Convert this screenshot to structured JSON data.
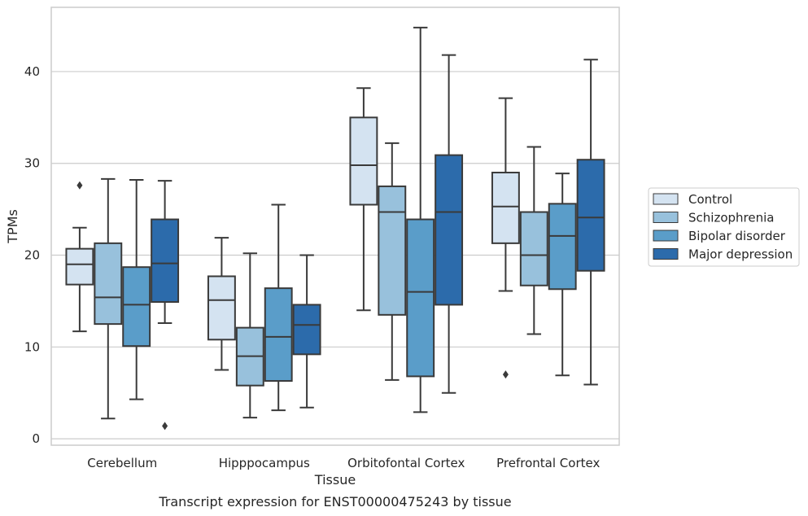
{
  "chart_data": {
    "type": "box",
    "xlabel": "Tissue",
    "ylabel": "TPMs",
    "caption": "Transcript expression for ENST00000475243 by tissue",
    "ylim": [
      -0.7,
      47
    ],
    "yticks": [
      0,
      10,
      20,
      30,
      40
    ],
    "grid": "horizontal",
    "legend_position": "right",
    "categories": [
      "Cerebellum",
      "Hipppocampus",
      "Orbitofontal Cortex",
      "Prefrontal Cortex"
    ],
    "series": [
      {
        "name": "Control",
        "color": "#d4e3f1",
        "boxes": [
          {
            "whisker_low": 11.7,
            "q1": 16.8,
            "median": 19.0,
            "q3": 20.7,
            "whisker_high": 23.0,
            "outliers": [
              27.6
            ]
          },
          {
            "whisker_low": 7.5,
            "q1": 10.8,
            "median": 15.1,
            "q3": 17.7,
            "whisker_high": 21.9,
            "outliers": []
          },
          {
            "whisker_low": 14.0,
            "q1": 25.5,
            "median": 29.8,
            "q3": 35.0,
            "whisker_high": 38.2,
            "outliers": []
          },
          {
            "whisker_low": 16.1,
            "q1": 21.3,
            "median": 25.3,
            "q3": 29.0,
            "whisker_high": 37.1,
            "outliers": [
              7.0
            ]
          }
        ]
      },
      {
        "name": "Schizophrenia",
        "color": "#98c1dc",
        "boxes": [
          {
            "whisker_low": 2.2,
            "q1": 12.5,
            "median": 15.4,
            "q3": 21.3,
            "whisker_high": 28.3,
            "outliers": []
          },
          {
            "whisker_low": 2.3,
            "q1": 5.8,
            "median": 9.0,
            "q3": 12.1,
            "whisker_high": 20.2,
            "outliers": []
          },
          {
            "whisker_low": 6.4,
            "q1": 13.5,
            "median": 24.7,
            "q3": 27.5,
            "whisker_high": 32.2,
            "outliers": []
          },
          {
            "whisker_low": 11.4,
            "q1": 16.7,
            "median": 20.0,
            "q3": 24.7,
            "whisker_high": 31.8,
            "outliers": []
          }
        ]
      },
      {
        "name": "Bipolar disorder",
        "color": "#5a9dc9",
        "boxes": [
          {
            "whisker_low": 4.3,
            "q1": 10.1,
            "median": 14.6,
            "q3": 18.7,
            "whisker_high": 28.2,
            "outliers": []
          },
          {
            "whisker_low": 3.1,
            "q1": 6.3,
            "median": 11.1,
            "q3": 16.4,
            "whisker_high": 25.5,
            "outliers": []
          },
          {
            "whisker_low": 2.9,
            "q1": 6.8,
            "median": 16.0,
            "q3": 23.9,
            "whisker_high": 44.8,
            "outliers": []
          },
          {
            "whisker_low": 6.9,
            "q1": 16.3,
            "median": 22.1,
            "q3": 25.6,
            "whisker_high": 28.9,
            "outliers": []
          }
        ]
      },
      {
        "name": "Major depression",
        "color": "#2c6bab",
        "boxes": [
          {
            "whisker_low": 12.6,
            "q1": 14.9,
            "median": 19.1,
            "q3": 23.9,
            "whisker_high": 28.1,
            "outliers": [
              1.4
            ]
          },
          {
            "whisker_low": 3.4,
            "q1": 9.2,
            "median": 12.4,
            "q3": 14.6,
            "whisker_high": 20.0,
            "outliers": []
          },
          {
            "whisker_low": 5.0,
            "q1": 14.6,
            "median": 24.7,
            "q3": 30.9,
            "whisker_high": 41.8,
            "outliers": []
          },
          {
            "whisker_low": 5.9,
            "q1": 18.3,
            "median": 24.1,
            "q3": 30.4,
            "whisker_high": 41.3,
            "outliers": []
          }
        ]
      }
    ]
  }
}
